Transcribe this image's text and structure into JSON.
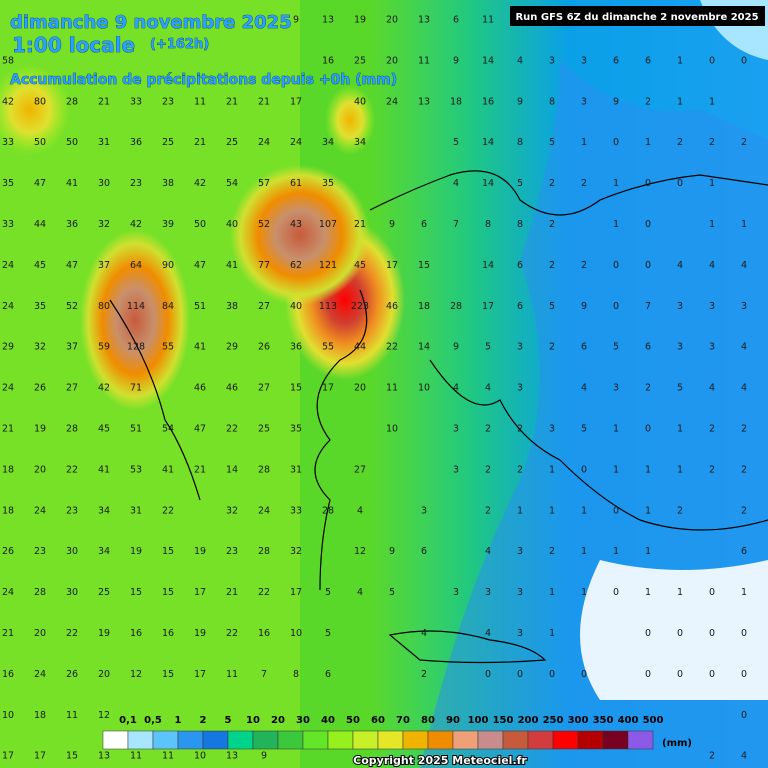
{
  "header": {
    "date": "dimanche 9 novembre 2025",
    "time": "1:00 locale",
    "lead": "(+162h)",
    "subtitle": "Accumulation de précipitations depuis +0h (mm)",
    "run": "Run GFS 6Z du dimanche 2 novembre 2025"
  },
  "grid": {
    "rows": [
      [
        null,
        null,
        null,
        null,
        null,
        null,
        null,
        null,
        null,
        9,
        13,
        19,
        20,
        13,
        6,
        11,
        null,
        null,
        null,
        null,
        null,
        null,
        null,
        null
      ],
      [
        58,
        null,
        null,
        null,
        null,
        null,
        null,
        null,
        null,
        null,
        16,
        25,
        20,
        11,
        9,
        14,
        4,
        3,
        3,
        6,
        6,
        1,
        0,
        0
      ],
      [
        42,
        80,
        28,
        21,
        33,
        23,
        11,
        21,
        21,
        17,
        null,
        40,
        24,
        13,
        18,
        16,
        9,
        8,
        3,
        9,
        2,
        1,
        1,
        null
      ],
      [
        33,
        50,
        50,
        31,
        36,
        25,
        21,
        25,
        24,
        24,
        34,
        34,
        null,
        null,
        5,
        14,
        8,
        5,
        1,
        0,
        1,
        2,
        2,
        2
      ],
      [
        35,
        47,
        41,
        30,
        23,
        38,
        42,
        54,
        57,
        61,
        35,
        null,
        null,
        null,
        4,
        14,
        5,
        2,
        2,
        1,
        0,
        0,
        1,
        null
      ],
      [
        33,
        44,
        36,
        32,
        42,
        39,
        50,
        40,
        52,
        43,
        107,
        21,
        9,
        6,
        7,
        8,
        8,
        2,
        null,
        1,
        0,
        null,
        1,
        1
      ],
      [
        24,
        45,
        47,
        37,
        64,
        90,
        47,
        41,
        77,
        62,
        121,
        45,
        17,
        15,
        null,
        14,
        6,
        2,
        2,
        0,
        0,
        4,
        4,
        4
      ],
      [
        24,
        35,
        52,
        80,
        114,
        84,
        51,
        38,
        27,
        40,
        113,
        223,
        46,
        18,
        28,
        17,
        6,
        5,
        9,
        0,
        7,
        3,
        3,
        3
      ],
      [
        29,
        32,
        37,
        59,
        128,
        55,
        41,
        29,
        26,
        36,
        55,
        44,
        22,
        14,
        9,
        5,
        3,
        2,
        6,
        5,
        6,
        3,
        3,
        4
      ],
      [
        24,
        26,
        27,
        42,
        71,
        null,
        46,
        46,
        27,
        15,
        17,
        20,
        11,
        10,
        4,
        4,
        3,
        null,
        4,
        3,
        2,
        5,
        4,
        4
      ],
      [
        21,
        19,
        28,
        45,
        51,
        54,
        47,
        22,
        25,
        35,
        null,
        null,
        10,
        null,
        3,
        2,
        2,
        3,
        5,
        1,
        0,
        1,
        2,
        2
      ],
      [
        18,
        20,
        22,
        41,
        53,
        41,
        21,
        14,
        28,
        31,
        null,
        27,
        null,
        null,
        3,
        2,
        2,
        1,
        0,
        1,
        1,
        1,
        2,
        2
      ],
      [
        18,
        24,
        23,
        34,
        31,
        22,
        null,
        32,
        24,
        33,
        28,
        4,
        null,
        3,
        null,
        2,
        1,
        1,
        1,
        0,
        1,
        2,
        null,
        2
      ],
      [
        26,
        23,
        30,
        34,
        19,
        15,
        19,
        23,
        28,
        32,
        null,
        12,
        9,
        6,
        null,
        4,
        3,
        2,
        1,
        1,
        1,
        null,
        null,
        6
      ],
      [
        24,
        28,
        30,
        25,
        15,
        15,
        17,
        21,
        22,
        17,
        5,
        4,
        5,
        null,
        3,
        3,
        3,
        1,
        1,
        0,
        1,
        1,
        0,
        1
      ],
      [
        21,
        20,
        22,
        19,
        16,
        16,
        19,
        22,
        16,
        10,
        5,
        null,
        null,
        4,
        null,
        4,
        3,
        1,
        null,
        null,
        0,
        0,
        0,
        0
      ],
      [
        16,
        24,
        26,
        20,
        12,
        15,
        17,
        11,
        7,
        8,
        6,
        null,
        null,
        2,
        null,
        0,
        0,
        0,
        0,
        null,
        0,
        0,
        0,
        0
      ],
      [
        10,
        18,
        11,
        12,
        null,
        null,
        null,
        null,
        null,
        null,
        null,
        null,
        null,
        null,
        null,
        null,
        null,
        null,
        null,
        null,
        null,
        null,
        null,
        0
      ],
      [
        17,
        17,
        15,
        13,
        11,
        11,
        10,
        13,
        9,
        null,
        null,
        null,
        null,
        null,
        null,
        null,
        null,
        null,
        null,
        null,
        null,
        null,
        2,
        4
      ]
    ]
  },
  "legend": {
    "labels": [
      "0,1",
      "0,5",
      "1",
      "2",
      "5",
      "10",
      "20",
      "30",
      "40",
      "50",
      "60",
      "70",
      "80",
      "90",
      "100",
      "150",
      "200",
      "250",
      "300",
      "350",
      "400",
      "500"
    ],
    "colors": [
      "#ffffff",
      "#a8e6ff",
      "#5cc4fa",
      "#2a96f0",
      "#1478e0",
      "#00d48c",
      "#22b45a",
      "#3cc83c",
      "#64e628",
      "#96f01e",
      "#c8f028",
      "#e6e628",
      "#f0b400",
      "#f08c00",
      "#f0a078",
      "#c88c8c",
      "#c85a3c",
      "#d23c3c",
      "#ff0000",
      "#b40000",
      "#780020",
      "#8c5ae6"
    ],
    "unit": "(mm)"
  },
  "footer": {
    "copyright": "Copyright 2025 Meteociel.fr"
  }
}
